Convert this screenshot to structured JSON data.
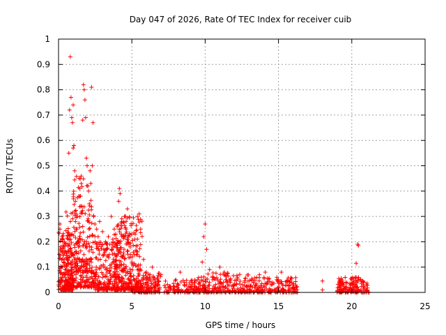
{
  "chart_data": {
    "type": "scatter",
    "title": "Day 047 of 2026, Rate Of TEC Index for receiver cuib",
    "xlabel": "GPS time / hours",
    "ylabel": "ROTI / TECUs",
    "xlim": [
      0,
      25
    ],
    "ylim": [
      0,
      1
    ],
    "x_ticks": [
      "0",
      "5",
      "10",
      "15",
      "20",
      "25"
    ],
    "y_ticks": [
      "0",
      "0.1",
      "0.2",
      "0.3",
      "0.4",
      "0.5",
      "0.6",
      "0.7",
      "0.8",
      "0.9",
      "1"
    ],
    "grid": true,
    "marker": "+",
    "series": [
      {
        "name": "ROTI",
        "color": "#ff0000",
        "points": [
          [
            0.0,
            0.03
          ],
          [
            0.05,
            0.15
          ],
          [
            0.1,
            0.25
          ],
          [
            0.1,
            0.27
          ],
          [
            0.15,
            0.18
          ],
          [
            0.2,
            0.1
          ],
          [
            0.25,
            0.22
          ],
          [
            0.3,
            0.06
          ],
          [
            0.35,
            0.12
          ],
          [
            0.4,
            0.2
          ],
          [
            0.45,
            0.09
          ],
          [
            0.5,
            0.16
          ],
          [
            0.55,
            0.04
          ],
          [
            0.6,
            0.13
          ],
          [
            0.65,
            0.21
          ],
          [
            0.7,
            0.55
          ],
          [
            0.75,
            0.72
          ],
          [
            0.8,
            0.93
          ],
          [
            0.85,
            0.77
          ],
          [
            0.9,
            0.69
          ],
          [
            0.95,
            0.67
          ],
          [
            1.0,
            0.74
          ],
          [
            1.0,
            0.57
          ],
          [
            1.05,
            0.58
          ],
          [
            1.1,
            0.48
          ],
          [
            1.15,
            0.36
          ],
          [
            1.2,
            0.31
          ],
          [
            1.25,
            0.25
          ],
          [
            1.3,
            0.3
          ],
          [
            1.35,
            0.2
          ],
          [
            1.4,
            0.45
          ],
          [
            1.45,
            0.41
          ],
          [
            1.5,
            0.38
          ],
          [
            1.55,
            0.43
          ],
          [
            1.6,
            0.34
          ],
          [
            1.65,
            0.68
          ],
          [
            1.7,
            0.82
          ],
          [
            1.75,
            0.8
          ],
          [
            1.8,
            0.76
          ],
          [
            1.85,
            0.69
          ],
          [
            1.9,
            0.53
          ],
          [
            1.95,
            0.5
          ],
          [
            2.0,
            0.42
          ],
          [
            2.05,
            0.4
          ],
          [
            2.1,
            0.35
          ],
          [
            2.15,
            0.48
          ],
          [
            2.2,
            0.43
          ],
          [
            2.25,
            0.81
          ],
          [
            2.3,
            0.5
          ],
          [
            2.35,
            0.67
          ],
          [
            2.4,
            0.3
          ],
          [
            2.5,
            0.2
          ],
          [
            2.6,
            0.25
          ],
          [
            2.7,
            0.22
          ],
          [
            2.8,
            0.28
          ],
          [
            2.9,
            0.18
          ],
          [
            3.0,
            0.24
          ],
          [
            3.1,
            0.15
          ],
          [
            3.2,
            0.2
          ],
          [
            3.3,
            0.17
          ],
          [
            3.4,
            0.22
          ],
          [
            3.5,
            0.19
          ],
          [
            3.6,
            0.3
          ],
          [
            3.7,
            0.21
          ],
          [
            3.8,
            0.25
          ],
          [
            3.9,
            0.23
          ],
          [
            4.0,
            0.26
          ],
          [
            4.1,
            0.36
          ],
          [
            4.15,
            0.41
          ],
          [
            4.2,
            0.39
          ],
          [
            4.3,
            0.28
          ],
          [
            4.4,
            0.22
          ],
          [
            4.5,
            0.3
          ],
          [
            4.6,
            0.25
          ],
          [
            4.7,
            0.33
          ],
          [
            4.8,
            0.19
          ],
          [
            4.9,
            0.15
          ],
          [
            5.0,
            0.12
          ],
          [
            5.2,
            0.21
          ],
          [
            5.4,
            0.16
          ],
          [
            5.5,
            0.31
          ],
          [
            5.6,
            0.25
          ],
          [
            5.8,
            0.13
          ],
          [
            6.0,
            0.08
          ],
          [
            6.2,
            0.06
          ],
          [
            6.4,
            0.1
          ],
          [
            6.6,
            0.05
          ],
          [
            6.8,
            0.03
          ],
          [
            7.5,
            0.02
          ],
          [
            8.0,
            0.05
          ],
          [
            8.3,
            0.08
          ],
          [
            8.6,
            0.04
          ],
          [
            9.0,
            0.02
          ],
          [
            9.5,
            0.05
          ],
          [
            9.8,
            0.12
          ],
          [
            9.9,
            0.22
          ],
          [
            10.0,
            0.27
          ],
          [
            10.1,
            0.17
          ],
          [
            10.3,
            0.09
          ],
          [
            10.5,
            0.06
          ],
          [
            11.0,
            0.1
          ],
          [
            11.3,
            0.08
          ],
          [
            11.7,
            0.05
          ],
          [
            12.2,
            0.06
          ],
          [
            12.7,
            0.04
          ],
          [
            13.2,
            0.05
          ],
          [
            13.7,
            0.07
          ],
          [
            14.1,
            0.08
          ],
          [
            14.5,
            0.03
          ],
          [
            15.0,
            0.05
          ],
          [
            15.2,
            0.08
          ],
          [
            15.6,
            0.04
          ],
          [
            16.0,
            0.03
          ],
          [
            16.2,
            0.02
          ],
          [
            18.0,
            0.045
          ],
          [
            18.0,
            0.01
          ],
          [
            19.2,
            0.03
          ],
          [
            19.6,
            0.04
          ],
          [
            20.0,
            0.05
          ],
          [
            20.3,
            0.06
          ],
          [
            20.3,
            0.115
          ],
          [
            20.4,
            0.19
          ],
          [
            20.45,
            0.185
          ],
          [
            20.6,
            0.05
          ],
          [
            20.8,
            0.04
          ],
          [
            21.0,
            0.03
          ]
        ],
        "bands": [
          {
            "x": [
              0.0,
              1.0
            ],
            "y": [
              0.01,
              0.24
            ],
            "n": 200
          },
          {
            "x": [
              0.5,
              2.5
            ],
            "y": [
              0.02,
              0.34
            ],
            "n": 250
          },
          {
            "x": [
              1.0,
              2.3
            ],
            "y": [
              0.08,
              0.46
            ],
            "n": 90
          },
          {
            "x": [
              2.5,
              4.0
            ],
            "y": [
              0.01,
              0.2
            ],
            "n": 200
          },
          {
            "x": [
              3.8,
              5.0
            ],
            "y": [
              0.01,
              0.3
            ],
            "n": 240
          },
          {
            "x": [
              5.0,
              5.7
            ],
            "y": [
              0.01,
              0.3
            ],
            "n": 90
          },
          {
            "x": [
              5.0,
              7.0
            ],
            "y": [
              0.0,
              0.08
            ],
            "n": 140
          },
          {
            "x": [
              7.2,
              9.2
            ],
            "y": [
              0.0,
              0.05
            ],
            "n": 90
          },
          {
            "x": [
              9.2,
              13.0
            ],
            "y": [
              0.0,
              0.08
            ],
            "n": 230
          },
          {
            "x": [
              13.0,
              16.3
            ],
            "y": [
              0.0,
              0.06
            ],
            "n": 180
          },
          {
            "x": [
              19.0,
              21.2
            ],
            "y": [
              0.0,
              0.06
            ],
            "n": 160
          }
        ]
      }
    ]
  }
}
